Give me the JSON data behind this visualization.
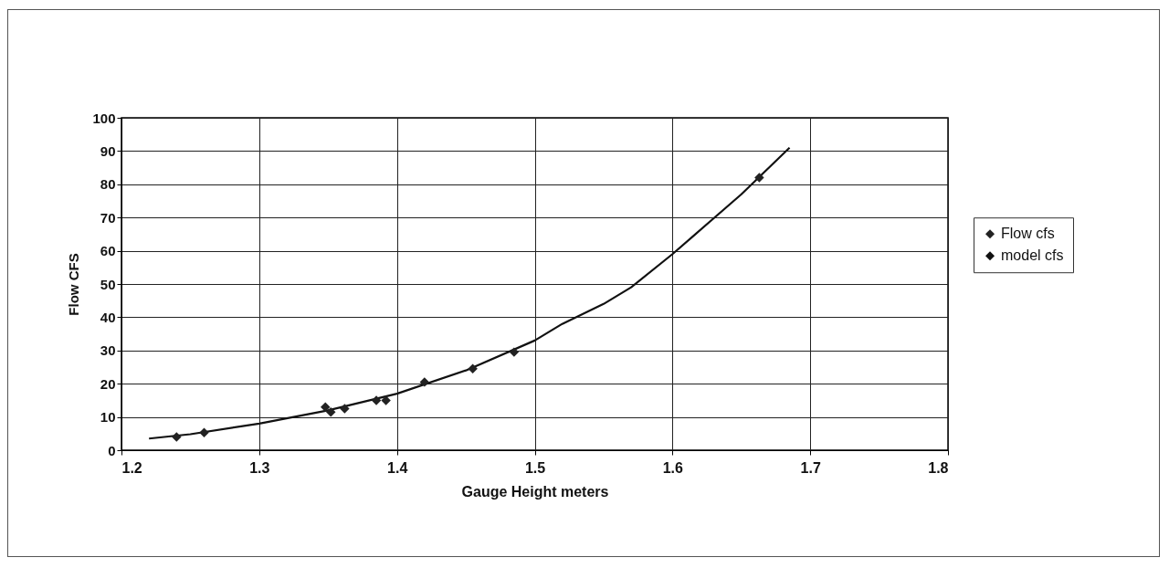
{
  "chart_data": {
    "type": "scatter",
    "xlabel": "Gauge Height meters",
    "ylabel": "Flow CFS",
    "xlim": [
      1.2,
      1.8
    ],
    "xticks": [
      1.2,
      1.3,
      1.4,
      1.5,
      1.6,
      1.7,
      1.8
    ],
    "ylim": [
      0,
      100
    ],
    "yticks": [
      0,
      10,
      20,
      30,
      40,
      50,
      60,
      70,
      80,
      90,
      100
    ],
    "grid": true,
    "legend": "right",
    "series": [
      {
        "name": "Flow cfs",
        "marker": "diamond",
        "color": "#222222",
        "x": [
          1.24,
          1.26,
          1.348,
          1.352,
          1.362,
          1.385,
          1.392,
          1.42,
          1.455,
          1.485,
          1.663
        ],
        "values": [
          4,
          5.3,
          13,
          11.5,
          12.5,
          15,
          15,
          20.5,
          24.5,
          29.5,
          82
        ]
      },
      {
        "name": "model cfs",
        "type": "line",
        "color": "#111111",
        "x": [
          1.22,
          1.25,
          1.3,
          1.35,
          1.4,
          1.45,
          1.5,
          1.52,
          1.55,
          1.57,
          1.6,
          1.65,
          1.685
        ],
        "values": [
          3.5,
          4.8,
          8,
          12,
          17,
          24,
          33,
          38,
          44,
          49,
          59,
          77,
          91
        ]
      }
    ]
  }
}
